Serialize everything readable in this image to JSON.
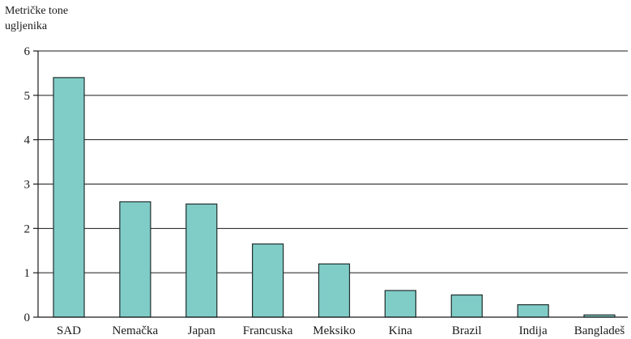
{
  "chart_data": {
    "type": "bar",
    "ylabel_lines": [
      "Metričke tone",
      "ugljenika"
    ],
    "categories": [
      "SAD",
      "Nemačka",
      "Japan",
      "Francuska",
      "Meksiko",
      "Kina",
      "Brazil",
      "Indija",
      "Bangladeš"
    ],
    "values": [
      5.4,
      2.6,
      2.55,
      1.65,
      1.2,
      0.6,
      0.5,
      0.28,
      0.05
    ],
    "ylim": [
      0,
      6
    ],
    "yticks": [
      0,
      1,
      2,
      3,
      4,
      5,
      6
    ],
    "grid": true,
    "bar_color": "#80cdc8"
  }
}
